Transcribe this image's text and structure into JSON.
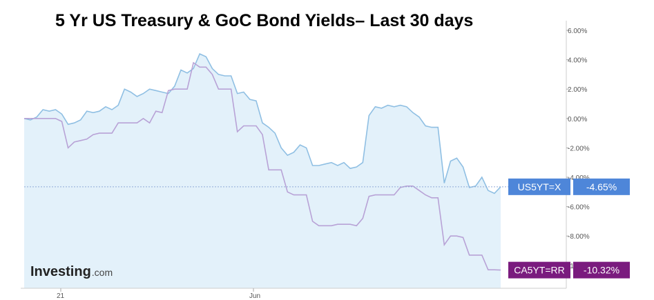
{
  "chart_data": {
    "type": "line",
    "title": "5 Yr US Treasury & GoC Bond Yields– Last 30 days",
    "xlabel": "",
    "ylabel": "",
    "x_ticks": [
      "21",
      "Jun"
    ],
    "y_ticks": [
      "6.00%",
      "4.00%",
      "2.00%",
      "0.00%",
      "-2.00%",
      "-4.00%",
      "-6.00%",
      "-8.00%",
      "-10.00%"
    ],
    "ylim": [
      -11.8,
      6.3
    ],
    "y_axis_side": "right",
    "grid": false,
    "brand": {
      "main": "Investing",
      "sub": ".com"
    },
    "series": [
      {
        "name": "US5YT=X",
        "color": "#8fbfe3",
        "fill": "#e3f1fa",
        "last_value_label": "-4.65%",
        "tag_color": "#4e86d9",
        "values": [
          0.0,
          -0.1,
          0.1,
          0.6,
          0.5,
          0.6,
          0.3,
          -0.4,
          -0.3,
          -0.1,
          0.5,
          0.4,
          0.5,
          0.8,
          0.6,
          0.9,
          2.0,
          1.8,
          1.5,
          1.7,
          2.0,
          1.9,
          1.8,
          1.7,
          2.2,
          3.3,
          3.1,
          3.4,
          4.4,
          4.2,
          3.4,
          3.0,
          2.9,
          2.9,
          1.7,
          1.8,
          1.3,
          1.2,
          -0.3,
          -0.6,
          -1.0,
          -2.0,
          -2.5,
          -2.3,
          -1.8,
          -2.0,
          -3.2,
          -3.2,
          -3.1,
          -3.0,
          -3.2,
          -3.0,
          -3.4,
          -3.3,
          -3.0,
          0.2,
          0.8,
          0.7,
          0.9,
          0.8,
          0.9,
          0.8,
          0.4,
          0.1,
          -0.5,
          -0.6,
          -0.6,
          -4.4,
          -2.9,
          -2.7,
          -3.3,
          -4.7,
          -4.6,
          -4.0,
          -4.9,
          -5.1,
          -4.65
        ]
      },
      {
        "name": "CA5YT=RR",
        "color": "#b8a2d6",
        "fill": "none",
        "last_value_label": "-10.32%",
        "tag_color": "#7a1b7e",
        "values": [
          0.0,
          0.0,
          0.0,
          0.0,
          0.0,
          0.0,
          -0.2,
          -2.0,
          -1.6,
          -1.5,
          -1.4,
          -1.1,
          -1.0,
          -1.0,
          -1.0,
          -0.3,
          -0.3,
          -0.3,
          -0.3,
          0.0,
          -0.3,
          0.5,
          0.4,
          1.9,
          2.0,
          2.0,
          2.0,
          3.8,
          3.5,
          3.5,
          3.0,
          2.0,
          2.0,
          2.0,
          -0.9,
          -0.5,
          -0.5,
          -0.5,
          -1.1,
          -3.5,
          -3.5,
          -3.5,
          -5.0,
          -5.2,
          -5.2,
          -5.2,
          -7.0,
          -7.3,
          -7.3,
          -7.3,
          -7.2,
          -7.2,
          -7.2,
          -7.3,
          -6.8,
          -5.3,
          -5.2,
          -5.2,
          -5.2,
          -5.2,
          -4.7,
          -4.6,
          -4.6,
          -4.9,
          -5.2,
          -5.4,
          -5.4,
          -8.6,
          -8.0,
          -8.0,
          -8.1,
          -9.3,
          -9.3,
          -9.3,
          -10.3,
          -10.3,
          -10.32
        ]
      }
    ]
  }
}
